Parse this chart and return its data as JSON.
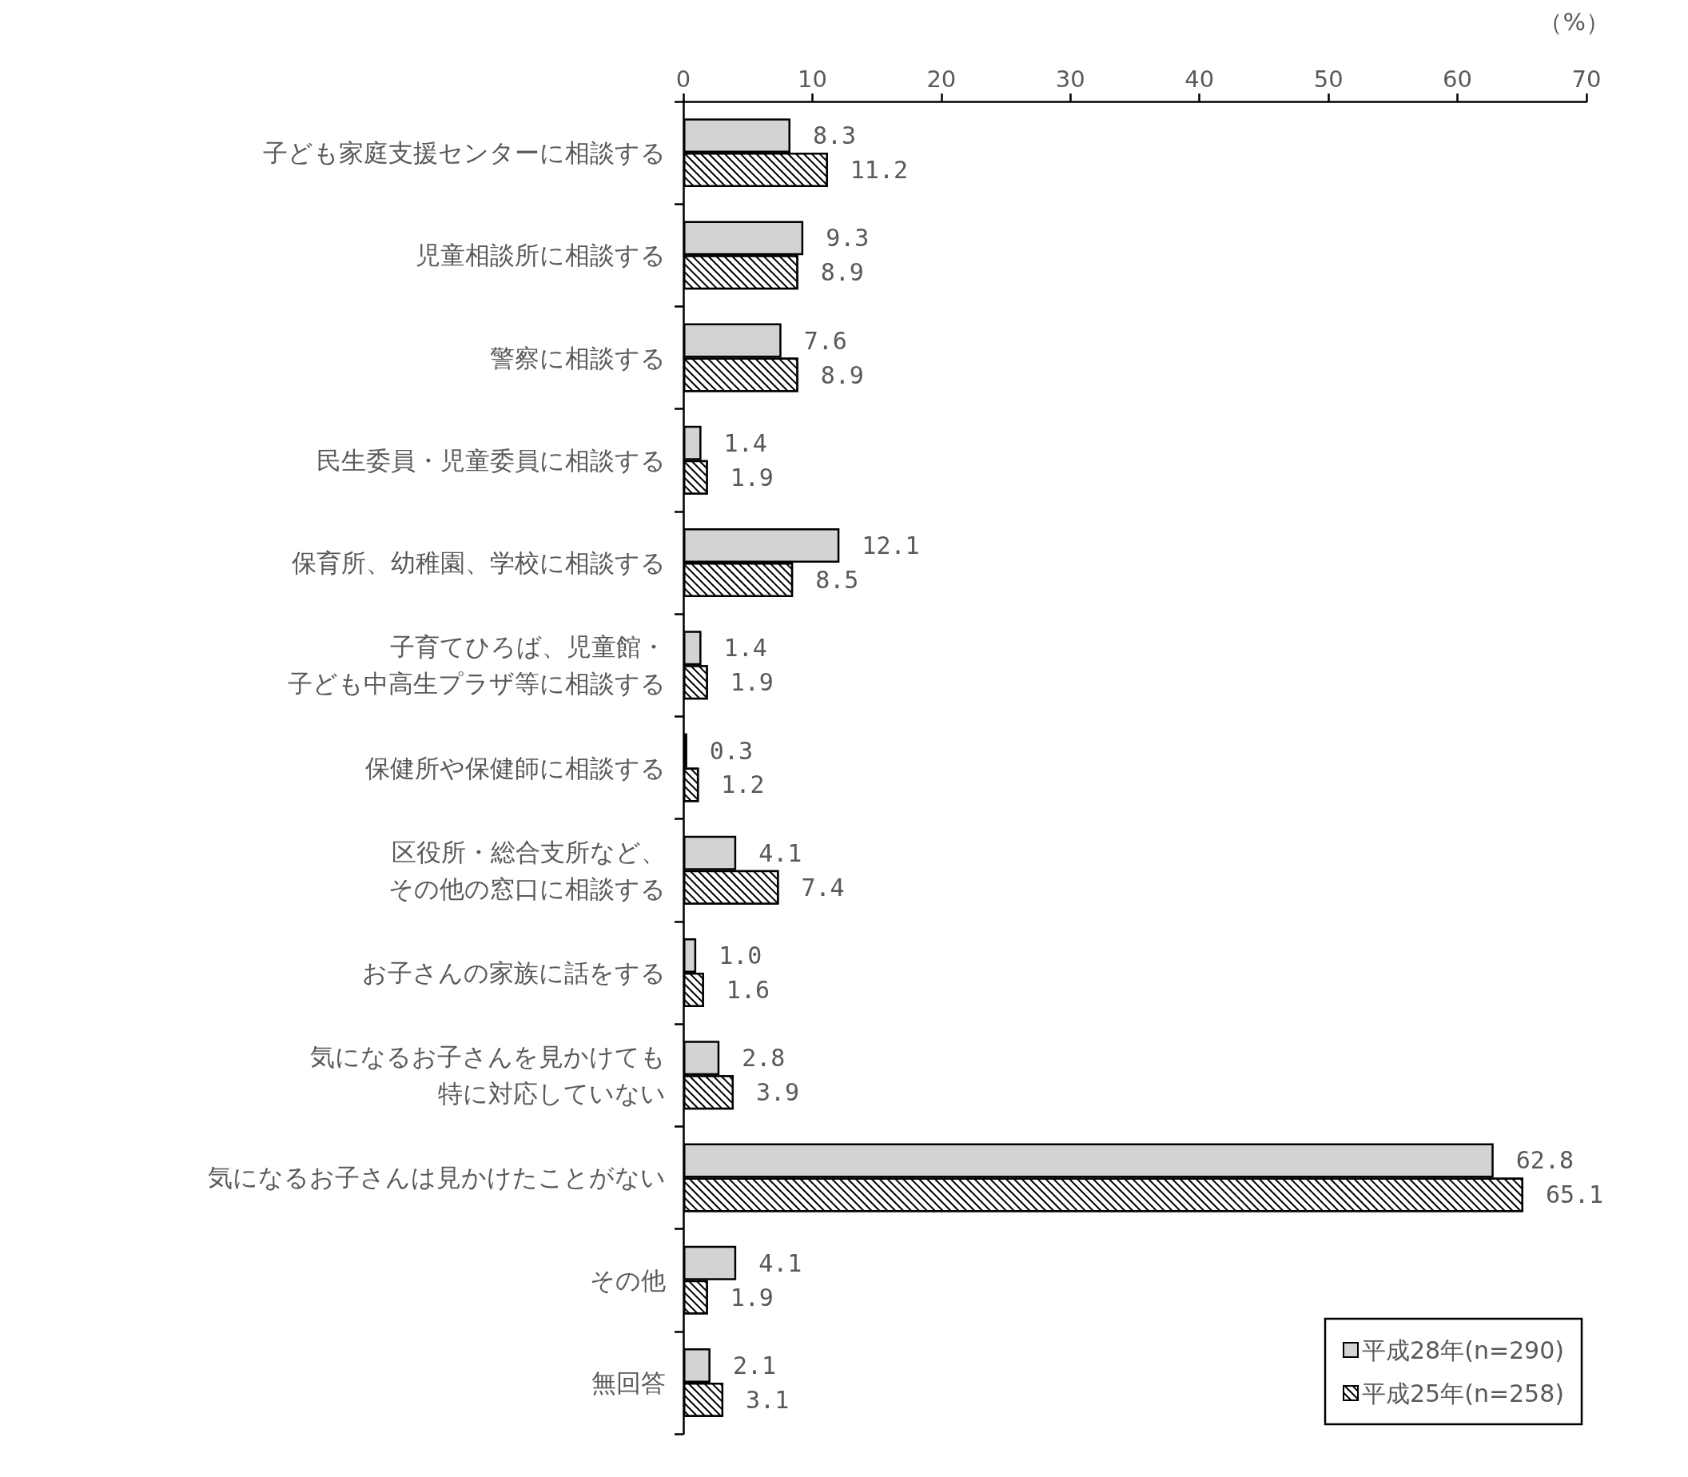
{
  "chart_data": {
    "type": "bar",
    "orientation": "horizontal",
    "xlabel": "（%）",
    "categories": [
      "子ども家庭支援センターに相談する",
      "児童相談所に相談する",
      "警察に相談する",
      "民生委員・児童委員に相談する",
      "保育所、幼稚園、学校に相談する",
      "子育てひろば、児童館・子ども中高生プラザ等に相談する",
      "保健所や保健師に相談する",
      "区役所・総合支所など、その他の窓口に相談する",
      "お子さんの家族に話をする",
      "気になるお子さんを見かけても特に対応していない",
      "気になるお子さんは見かけたことがない",
      "その他",
      "無回答"
    ],
    "series": [
      {
        "name": "平成28年(n=290)",
        "color": "#d3d3d3",
        "values": [
          8.3,
          9.3,
          7.6,
          1.4,
          12.1,
          1.4,
          0.3,
          4.1,
          1.0,
          2.8,
          62.8,
          4.1,
          2.1
        ],
        "value_labels": [
          "8.3",
          "9.3",
          "7.6",
          "1.4",
          "12.1",
          "1.4",
          "0.3",
          "4.1",
          "1.0",
          "2.8",
          "62.8",
          "4.1",
          "2.1"
        ]
      },
      {
        "name": "平成25年(n=258)",
        "color": "#000000",
        "values": [
          11.2,
          8.9,
          8.9,
          1.9,
          8.5,
          1.9,
          1.2,
          7.4,
          1.6,
          3.9,
          65.1,
          1.9,
          3.1
        ],
        "value_labels": [
          "11.2",
          "8.9",
          "8.9",
          "1.9",
          "8.5",
          "1.9",
          "1.2",
          "7.4",
          "1.6",
          "3.9",
          "65.1",
          "1.9",
          "3.1"
        ]
      }
    ],
    "xlim": [
      0,
      70
    ],
    "xticks": [
      0,
      10,
      20,
      30,
      40,
      50,
      60,
      70
    ],
    "grid": false,
    "legend": "bottom right"
  }
}
